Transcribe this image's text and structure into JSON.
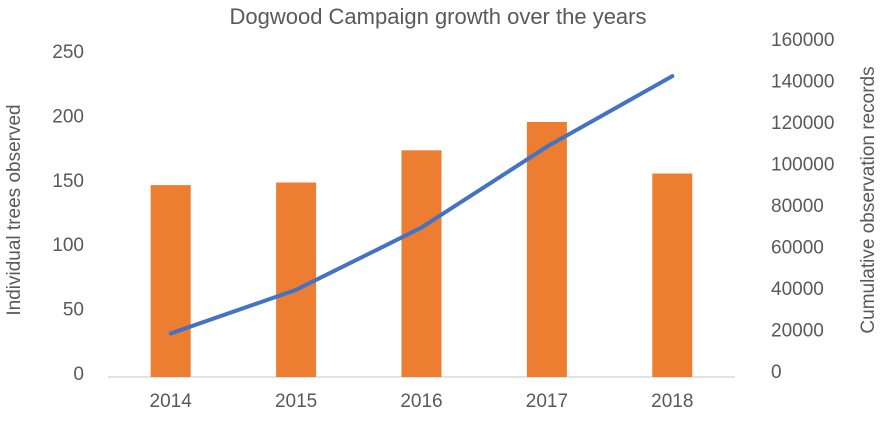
{
  "chart_data": {
    "type": "bar+line",
    "title": "Dogwood Campaign growth over the years",
    "categories": [
      "2014",
      "2015",
      "2016",
      "2017",
      "2018"
    ],
    "series": [
      {
        "type": "bar",
        "axis": "left",
        "values": [
          149,
          151,
          176,
          198,
          158
        ],
        "color": "#ED7D31"
      },
      {
        "type": "line",
        "axis": "right",
        "values": [
          21000,
          42000,
          72000,
          111000,
          145000
        ],
        "color": "#4472C4"
      }
    ],
    "ylabel": "Individual trees observed",
    "ylabel_right": "Cumulative observation records",
    "ylim": [
      0,
      250
    ],
    "yticks": [
      "0",
      "50",
      "100",
      "150",
      "200",
      "250"
    ],
    "ylim_right": [
      0,
      160000
    ],
    "yticks_right": [
      "0",
      "20000",
      "40000",
      "60000",
      "80000",
      "100000",
      "120000",
      "140000",
      "160000"
    ],
    "grid": false,
    "legend": "none"
  }
}
